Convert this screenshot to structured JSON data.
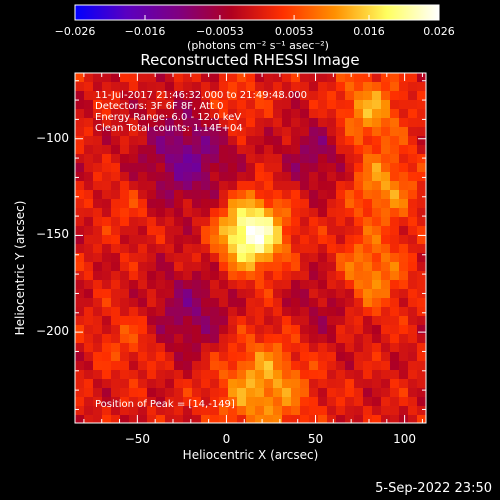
{
  "colorbar": {
    "ticks": [
      "−0.026",
      "−0.016",
      "−0.0053",
      "0.0053",
      "0.016",
      "0.026"
    ],
    "tick_values": [
      -0.026,
      -0.016,
      -0.0053,
      0.0053,
      0.016,
      0.026
    ],
    "units": "(photons cm⁻² s⁻¹ asec⁻²)",
    "range": [
      -0.026,
      0.026
    ]
  },
  "annotations": {
    "time": "11-Jul-2017 21:46:32.000 to 21:49:48.000",
    "detectors": "Detectors: 3F 6F 8F, Att 0",
    "energy": "Energy Range: 6.0 - 12.0 keV",
    "method": "Clean     Total counts: 1.14E+04",
    "peak": "Position of Peak = [14,-149]"
  },
  "footer": {
    "date": "5-Sep-2022 23:50"
  },
  "chart_data": {
    "type": "heatmap",
    "title": "Reconstructed RHESSI Image",
    "xlabel": "Heliocentric X (arcsec)",
    "ylabel": "Heliocentric Y (arcsec)",
    "xlim": [
      -85,
      112
    ],
    "ylim": [
      -247,
      -66
    ],
    "x_ticks": [
      -50,
      0,
      50,
      100
    ],
    "y_ticks": [
      -100,
      -150,
      -200
    ],
    "peak": {
      "x": 14,
      "y": -149
    },
    "colormap": [
      "#0000ff",
      "#5a00c0",
      "#800080",
      "#b00020",
      "#ff3000",
      "#ff9000",
      "#ffff60",
      "#ffffff"
    ],
    "sources": [
      {
        "x": 14,
        "y": -149,
        "sigma": 13,
        "amp": 0.026
      },
      {
        "x": -22,
        "y": -110,
        "sigma": 18,
        "amp": -0.012
      },
      {
        "x": 50,
        "y": -108,
        "sigma": 13,
        "amp": -0.008
      },
      {
        "x": -20,
        "y": -190,
        "sigma": 16,
        "amp": -0.009
      },
      {
        "x": 55,
        "y": -185,
        "sigma": 14,
        "amp": -0.006
      },
      {
        "x": 80,
        "y": -85,
        "sigma": 13,
        "amp": 0.012
      },
      {
        "x": 88,
        "y": -125,
        "sigma": 13,
        "amp": 0.011
      },
      {
        "x": 80,
        "y": -170,
        "sigma": 14,
        "amp": 0.011
      },
      {
        "x": 20,
        "y": -228,
        "sigma": 18,
        "amp": 0.013
      },
      {
        "x": 5,
        "y": -82,
        "sigma": 10,
        "amp": 0.006
      },
      {
        "x": -55,
        "y": -205,
        "sigma": 12,
        "amp": 0.005
      },
      {
        "x": -55,
        "y": -135,
        "sigma": 10,
        "amp": 0.004
      }
    ]
  }
}
